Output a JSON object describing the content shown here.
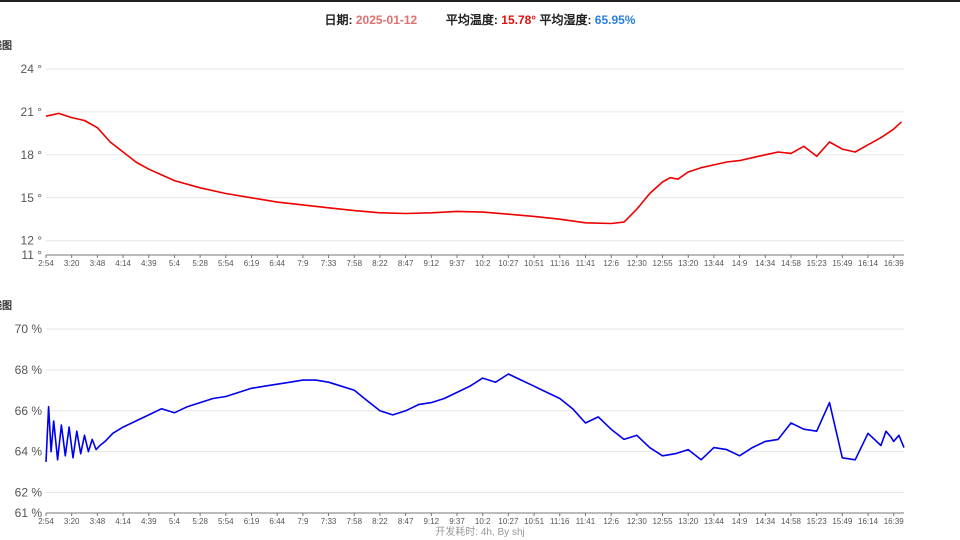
{
  "header": {
    "date_label": "日期: ",
    "date_value": "2025-01-12",
    "avg_temp_label": "平均温度: ",
    "avg_temp_value": "15.78°",
    "avg_hum_label": "平均湿度: ",
    "avg_hum_value": "65.95%"
  },
  "charts_meta": {
    "temp_title_fragment": "线图",
    "hum_title_fragment": "线图"
  },
  "footer": {
    "text": "开发耗时: 4h, By shj"
  },
  "chart_data": [
    {
      "type": "line",
      "title": "",
      "unit_suffix": " °",
      "ylim": [
        11,
        24
      ],
      "yticks": [
        11,
        12,
        15,
        18,
        21,
        24
      ],
      "grid": true,
      "x_tick_labels": [
        "2:54",
        "3:20",
        "3:48",
        "4:14",
        "4:39",
        "5:4",
        "5:28",
        "5:54",
        "6:19",
        "6:44",
        "7:9",
        "7:33",
        "7:58",
        "8:22",
        "8:47",
        "9:12",
        "9:37",
        "10:2",
        "10:27",
        "10:51",
        "11:16",
        "11:41",
        "12:6",
        "12:30",
        "12:55",
        "13:20",
        "13:44",
        "14:9",
        "14:34",
        "14:58",
        "15:23",
        "15:49",
        "16:14",
        "16:39"
      ],
      "color": "#ee0000",
      "series": [
        {
          "x": [
            0,
            0.5,
            1,
            1.5,
            2,
            2.5,
            3,
            3.5,
            4,
            4.5,
            5,
            6,
            7,
            8,
            9,
            10,
            11,
            12,
            13,
            14,
            15,
            16,
            17,
            18,
            19,
            20,
            21,
            22,
            22.5,
            23,
            23.5,
            24,
            24.3,
            24.6,
            25,
            25.5,
            26,
            26.5,
            27,
            27.5,
            28,
            28.5,
            29,
            29.5,
            30,
            30.5,
            31,
            31.5,
            32,
            32.5,
            33,
            33.3
          ],
          "values": [
            20.7,
            20.9,
            20.6,
            20.4,
            19.9,
            18.9,
            18.2,
            17.5,
            17.0,
            16.6,
            16.2,
            15.7,
            15.3,
            15.0,
            14.7,
            14.5,
            14.3,
            14.1,
            13.95,
            13.9,
            13.95,
            14.05,
            14.0,
            13.85,
            13.7,
            13.5,
            13.25,
            13.2,
            13.3,
            14.2,
            15.3,
            16.1,
            16.4,
            16.3,
            16.8,
            17.1,
            17.3,
            17.5,
            17.6,
            17.8,
            18.0,
            18.2,
            18.1,
            18.6,
            17.9,
            18.9,
            18.4,
            18.2,
            18.7,
            19.2,
            19.8,
            20.3
          ]
        }
      ]
    },
    {
      "type": "line",
      "title": "",
      "unit_suffix": " %",
      "ylim": [
        61,
        70
      ],
      "yticks": [
        61,
        62,
        64,
        66,
        68,
        70
      ],
      "grid": true,
      "x_tick_labels": [
        "2:54",
        "3:20",
        "3:48",
        "4:14",
        "4:39",
        "5:4",
        "5:28",
        "5:54",
        "6:19",
        "6:44",
        "7:9",
        "7:33",
        "7:58",
        "8:22",
        "8:47",
        "9:12",
        "9:37",
        "10:2",
        "10:27",
        "10:51",
        "11:16",
        "11:41",
        "12:6",
        "12:30",
        "12:55",
        "13:20",
        "13:44",
        "14:9",
        "14:34",
        "14:58",
        "15:23",
        "15:49",
        "16:14",
        "16:39"
      ],
      "color": "#0000ee",
      "series": [
        {
          "x": [
            0,
            0.1,
            0.2,
            0.3,
            0.45,
            0.6,
            0.75,
            0.9,
            1.05,
            1.2,
            1.35,
            1.5,
            1.65,
            1.8,
            1.95,
            2.1,
            2.3,
            2.6,
            3,
            3.5,
            4,
            4.5,
            5,
            5.5,
            6,
            6.5,
            7,
            7.5,
            8,
            8.5,
            9,
            9.5,
            10,
            10.5,
            11,
            11.5,
            12,
            12.5,
            13,
            13.5,
            14,
            14.5,
            15,
            15.5,
            16,
            16.5,
            17,
            17.5,
            18,
            18.5,
            19,
            19.5,
            20,
            20.5,
            21,
            21.5,
            22,
            22.5,
            23,
            23.5,
            24,
            24.5,
            25,
            25.5,
            26,
            26.5,
            27,
            27.5,
            28,
            28.5,
            29,
            29.5,
            30,
            30.5,
            31,
            31.5,
            32,
            32.5,
            32.7,
            32.9,
            33,
            33.2,
            33.4
          ],
          "values": [
            63.5,
            66.2,
            64.0,
            65.5,
            63.6,
            65.3,
            63.8,
            65.2,
            63.7,
            65.0,
            63.9,
            64.8,
            64.0,
            64.6,
            64.1,
            64.3,
            64.5,
            64.9,
            65.2,
            65.5,
            65.8,
            66.1,
            65.9,
            66.2,
            66.4,
            66.6,
            66.7,
            66.9,
            67.1,
            67.2,
            67.3,
            67.4,
            67.5,
            67.5,
            67.4,
            67.2,
            67.0,
            66.5,
            66.0,
            65.8,
            66.0,
            66.3,
            66.4,
            66.6,
            66.9,
            67.2,
            67.6,
            67.4,
            67.8,
            67.5,
            67.2,
            66.9,
            66.6,
            66.1,
            65.4,
            65.7,
            65.1,
            64.6,
            64.8,
            64.2,
            63.8,
            63.9,
            64.1,
            63.6,
            64.2,
            64.1,
            63.8,
            64.2,
            64.5,
            64.6,
            65.4,
            65.1,
            65.0,
            66.4,
            63.7,
            63.6,
            64.9,
            64.3,
            65.0,
            64.7,
            64.5,
            64.8,
            64.2
          ]
        }
      ]
    }
  ]
}
